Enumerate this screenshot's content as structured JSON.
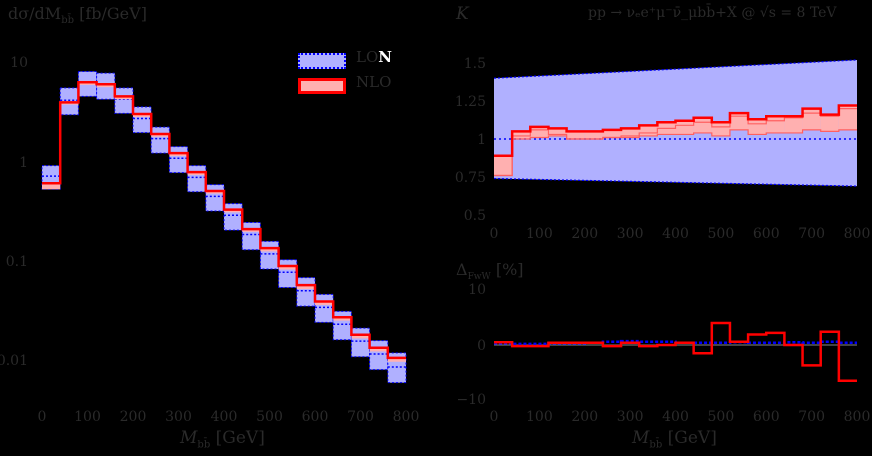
{
  "chart_data": [
    {
      "id": "main",
      "type": "bar",
      "title": "",
      "ylabel": "dσ/dM_bb̄ [fb/GeV]",
      "xlabel": "M_bb̄ [GeV]",
      "yscale": "log",
      "ylim": [
        0.004,
        14
      ],
      "xlim": [
        0,
        800
      ],
      "x_ticks": [
        "0",
        "100",
        "200",
        "300",
        "400",
        "500",
        "600",
        "700",
        "800"
      ],
      "y_ticks": [
        "10",
        "1",
        "0.1",
        "0.01"
      ],
      "bin_edges": [
        0,
        40,
        80,
        120,
        160,
        200,
        240,
        280,
        320,
        360,
        400,
        440,
        480,
        520,
        560,
        600,
        640,
        680,
        720,
        760,
        800
      ],
      "legend": [
        "LON",
        "NLO"
      ],
      "series": [
        {
          "name": "LO",
          "style": "blue dashed band",
          "central": [
            0.72,
            4.2,
            6.3,
            6.0,
            4.3,
            2.75,
            1.72,
            1.09,
            0.7,
            0.45,
            0.29,
            0.185,
            0.118,
            0.077,
            0.05,
            0.034,
            0.023,
            0.0155,
            0.0115,
            0.0085
          ],
          "upper": [
            0.92,
            5.6,
            8.2,
            7.9,
            5.6,
            3.6,
            2.25,
            1.43,
            0.92,
            0.59,
            0.38,
            0.245,
            0.158,
            0.103,
            0.068,
            0.046,
            0.031,
            0.021,
            0.0157,
            0.0118
          ],
          "lower": [
            0.53,
            3.0,
            4.6,
            4.3,
            3.1,
            1.98,
            1.23,
            0.78,
            0.5,
            0.32,
            0.205,
            0.13,
            0.083,
            0.054,
            0.035,
            0.024,
            0.016,
            0.0108,
            0.008,
            0.0059
          ]
        },
        {
          "name": "NLO",
          "style": "red band",
          "central": [
            0.61,
            4.0,
            6.4,
            6.1,
            4.6,
            3.05,
            1.92,
            1.23,
            0.79,
            0.51,
            0.33,
            0.21,
            0.135,
            0.089,
            0.057,
            0.039,
            0.027,
            0.018,
            0.0133,
            0.0105
          ],
          "upper": [
            0.62,
            4.1,
            6.6,
            6.3,
            4.7,
            3.1,
            1.96,
            1.25,
            0.81,
            0.52,
            0.34,
            0.215,
            0.138,
            0.091,
            0.058,
            0.04,
            0.0275,
            0.0185,
            0.0136,
            0.0107
          ],
          "lower": [
            0.53,
            3.8,
            6.0,
            5.7,
            4.3,
            2.85,
            1.8,
            1.15,
            0.74,
            0.48,
            0.31,
            0.197,
            0.125,
            0.082,
            0.052,
            0.036,
            0.025,
            0.0165,
            0.0122,
            0.0096
          ]
        }
      ]
    },
    {
      "id": "kfactor",
      "type": "area",
      "title": "pp → ν_e e⁺ μ⁻ ν̄_μ b b̄ + X @ √s = 8 TeV",
      "ylabel": "K",
      "xlabel": "",
      "ylim": [
        0.5,
        1.55
      ],
      "xlim": [
        0,
        800
      ],
      "x_ticks": [
        "0",
        "100",
        "200",
        "300",
        "400",
        "500",
        "600",
        "700",
        "800"
      ],
      "y_ticks": [
        "0.5",
        "0.75",
        "1",
        "1.25",
        "1.5"
      ],
      "bin_edges": [
        0,
        40,
        80,
        120,
        160,
        200,
        240,
        280,
        320,
        360,
        400,
        440,
        480,
        520,
        560,
        600,
        640,
        680,
        720,
        760,
        800
      ],
      "series": [
        {
          "name": "LO band",
          "style": "blue band, dashed edges",
          "upper_x": [
            0,
            800
          ],
          "upper": [
            1.4,
            1.52
          ],
          "lower_x": [
            0,
            800
          ],
          "lower": [
            0.74,
            0.69
          ],
          "central": 1.0
        },
        {
          "name": "NLO band",
          "style": "red band",
          "upper": [
            0.89,
            1.05,
            1.08,
            1.07,
            1.05,
            1.05,
            1.06,
            1.07,
            1.09,
            1.11,
            1.12,
            1.14,
            1.11,
            1.17,
            1.13,
            1.15,
            1.15,
            1.2,
            1.16,
            1.22
          ],
          "mid": [
            0.76,
            1.02,
            1.06,
            1.03,
            1.0,
            1.0,
            1.01,
            1.02,
            1.04,
            1.07,
            1.09,
            1.11,
            1.08,
            1.15,
            1.1,
            1.12,
            1.14,
            1.17,
            1.15,
            1.2
          ],
          "lower": [
            0.76,
            1.0,
            1.01,
            1.02,
            1.0,
            1.0,
            1.01,
            1.01,
            1.02,
            1.03,
            1.03,
            1.04,
            1.02,
            1.06,
            1.03,
            1.04,
            1.04,
            1.06,
            1.05,
            1.06
          ]
        }
      ]
    },
    {
      "id": "delta",
      "type": "line",
      "title": "",
      "ylabel": "Δ_FwW [%]",
      "xlabel": "M_bb̄ [GeV]",
      "ylim": [
        -11,
        11
      ],
      "xlim": [
        0,
        800
      ],
      "x_ticks": [
        "0",
        "100",
        "200",
        "300",
        "400",
        "500",
        "600",
        "700",
        "800"
      ],
      "y_ticks": [
        "10",
        "0",
        "−10"
      ],
      "bin_edges": [
        0,
        40,
        80,
        120,
        160,
        200,
        240,
        280,
        320,
        360,
        400,
        440,
        480,
        520,
        560,
        600,
        640,
        680,
        720,
        760,
        800
      ],
      "series": [
        {
          "name": "NLO (red)",
          "values": [
            0.5,
            -0.2,
            -0.2,
            0.4,
            0.4,
            0.4,
            -0.2,
            0.4,
            -0.2,
            0.0,
            0.4,
            -1.5,
            4.0,
            0.6,
            1.9,
            2.2,
            0.0,
            -3.7,
            2.4,
            -6.5
          ]
        },
        {
          "name": "LO (blue dashed)",
          "values": [
            0.3,
            0.2,
            0.2,
            0.3,
            0.3,
            0.4,
            0.6,
            0.7,
            0.6,
            0.6,
            0.4,
            0.4,
            0.4,
            0.5,
            0.4,
            0.4,
            0.5,
            0.4,
            0.6,
            0.4
          ]
        }
      ]
    }
  ],
  "labels": {
    "main_ylabel": "dσ/dM",
    "main_ylabel_sub": "bb̄",
    "main_ylabel_unit": " [fb/GeV]",
    "main_xlabel": "M",
    "main_xlabel_sub": "bb̄",
    "main_xlabel_unit": " [GeV]",
    "k_label": "K",
    "process": "pp → ν",
    "process_full": "pp → νₑe⁺μ⁻ν̄_μbb̄+X @ √s = 8 TeV",
    "delta_label": "Δ",
    "delta_sub": "FwW",
    "delta_unit": " [%]",
    "legend_lo": "LO",
    "legend_lo_suffix": "N",
    "legend_nlo": "NLO"
  },
  "colors": {
    "lo_fill": "#b0b0ff",
    "lo_edge": "#0000ff",
    "nlo_fill": "#ffb0b0",
    "nlo_edge": "#ff0000",
    "text": "#2a2a2a",
    "background": "#000000"
  }
}
